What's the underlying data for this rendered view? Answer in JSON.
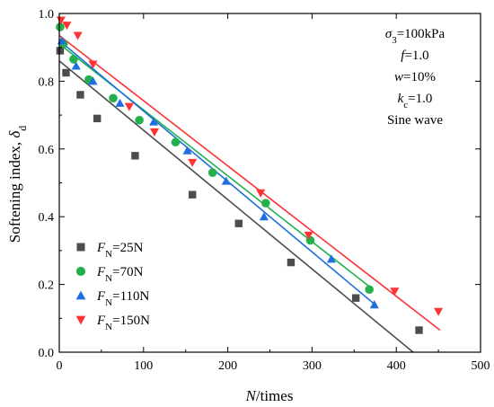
{
  "chart_data": {
    "type": "scatter",
    "xlabel": {
      "italic": "N",
      "rest": "/times"
    },
    "ylabel": {
      "main": "Softening index, ",
      "italic": "δ",
      "sub": "d"
    },
    "xlim": [
      0,
      500
    ],
    "ylim": [
      0,
      1.0
    ],
    "x_ticks": [
      0,
      100,
      200,
      300,
      400,
      500
    ],
    "y_ticks": [
      0.0,
      0.2,
      0.4,
      0.6,
      0.8,
      1.0
    ],
    "x_tick_labels": [
      "0",
      "100",
      "200",
      "300",
      "400",
      "500"
    ],
    "y_tick_labels": [
      "0.0",
      "0.2",
      "0.4",
      "0.6",
      "0.8",
      "1.0"
    ],
    "grid": false,
    "legend_position": "bottom-left",
    "annotations": [
      {
        "italic": "σ",
        "sub": "3",
        "rest": "=100kPa"
      },
      {
        "italic": "f",
        "sub": "",
        "rest": "=1.0"
      },
      {
        "italic": "w",
        "sub": "",
        "rest": "=10%"
      },
      {
        "italic": "k",
        "sub": "c",
        "rest": "=1.0"
      },
      {
        "italic": "",
        "sub": "",
        "rest": "Sine wave"
      }
    ],
    "series": [
      {
        "legend_italic": "F",
        "legend_sub": "N",
        "legend_rest": "=25N",
        "marker": "square",
        "color": "#4d4d4d",
        "x": [
          1,
          8,
          25,
          45,
          90,
          158,
          213,
          275,
          352,
          427
        ],
        "y": [
          0.89,
          0.825,
          0.76,
          0.69,
          0.58,
          0.465,
          0.38,
          0.265,
          0.16,
          0.065
        ],
        "fit": {
          "x": [
            0,
            420
          ],
          "y": [
            0.86,
            0.0
          ]
        }
      },
      {
        "legend_italic": "F",
        "legend_sub": "N",
        "legend_rest": "=70N",
        "marker": "circle",
        "color": "#22b14c",
        "x": [
          1,
          5,
          17,
          35,
          64,
          95,
          138,
          182,
          245,
          298,
          368
        ],
        "y": [
          0.96,
          0.91,
          0.865,
          0.805,
          0.75,
          0.685,
          0.62,
          0.53,
          0.44,
          0.33,
          0.185
        ],
        "fit": {
          "x": [
            0,
            370
          ],
          "y": [
            0.91,
            0.19
          ]
        }
      },
      {
        "legend_italic": "F",
        "legend_sub": "N",
        "legend_rest": "=110N",
        "marker": "triangle-up",
        "color": "#1f6fe0",
        "x": [
          3,
          20,
          40,
          72,
          112,
          152,
          198,
          243,
          323,
          374
        ],
        "y": [
          0.92,
          0.845,
          0.8,
          0.735,
          0.68,
          0.595,
          0.505,
          0.4,
          0.275,
          0.14
        ],
        "fit": {
          "x": [
            0,
            375
          ],
          "y": [
            0.92,
            0.14
          ]
        }
      },
      {
        "legend_italic": "F",
        "legend_sub": "N",
        "legend_rest": "=150N",
        "marker": "triangle-down",
        "color": "#ff3333",
        "x": [
          2,
          9,
          22,
          40,
          83,
          113,
          158,
          239,
          296,
          398,
          450
        ],
        "y": [
          0.98,
          0.965,
          0.935,
          0.85,
          0.725,
          0.65,
          0.56,
          0.47,
          0.345,
          0.18,
          0.12
        ],
        "fit": {
          "x": [
            0,
            452
          ],
          "y": [
            0.935,
            0.065
          ]
        }
      }
    ]
  }
}
